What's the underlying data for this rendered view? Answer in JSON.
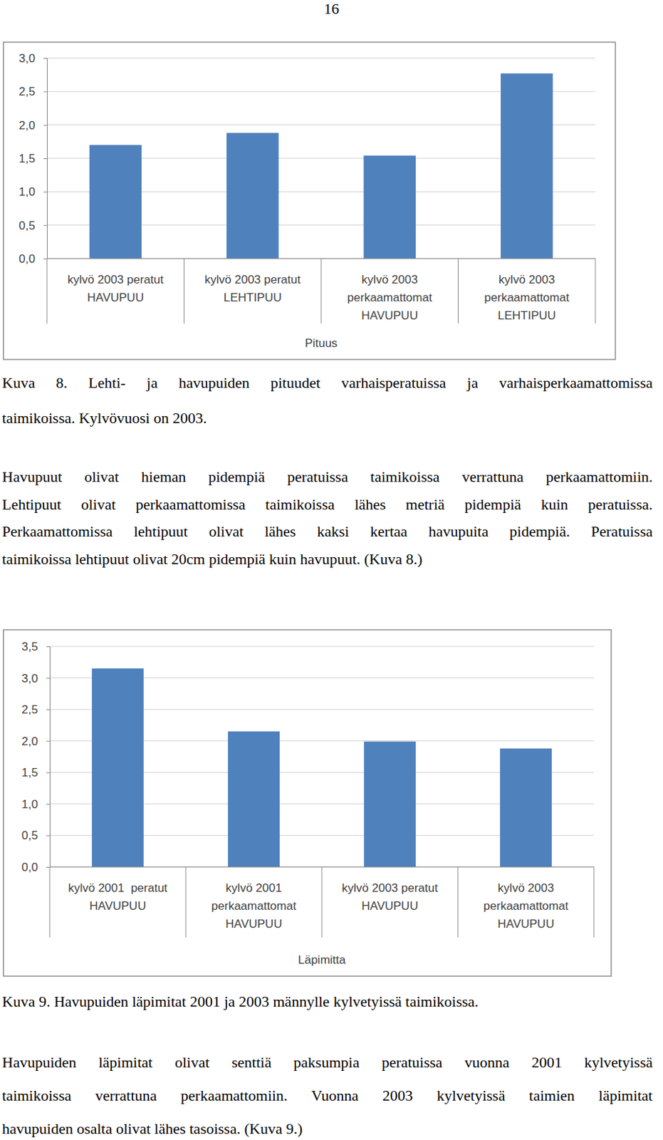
{
  "page_number": "16",
  "chart_data": [
    {
      "type": "bar",
      "x_label": "Pituus",
      "categories": [
        "kylvö 2003 peratut\nHAVUPUU",
        "kylvö 2003 peratut\nLEHTIPUU",
        "kylvö 2003\nperkaamattomat\nHAVUPUU",
        "kylvö 2003\nperkaamattomat\nLEHTIPUU"
      ],
      "values": [
        1.7,
        1.88,
        1.54,
        2.77
      ],
      "color": "#4f81bd",
      "ylim": [
        0,
        3
      ],
      "yticks": [
        {
          "value": 0,
          "label": "0,0"
        },
        {
          "value": 0.5,
          "label": "0,5"
        },
        {
          "value": 1,
          "label": "1,0"
        },
        {
          "value": 1.5,
          "label": "1,5"
        },
        {
          "value": 2,
          "label": "2,0"
        },
        {
          "value": 2.5,
          "label": "2,5"
        },
        {
          "value": 3,
          "label": "3,0"
        }
      ],
      "grid": true
    },
    {
      "type": "bar",
      "x_label": "Läpimitta",
      "categories": [
        "kylvö 2001  peratut\nHAVUPUU",
        "kylvö 2001\nperkaamattomat\nHAVUPUU",
        "kylvö 2003 peratut\nHAVUPUU",
        "kylvö 2003\nperkaamattomat\nHAVUPUU"
      ],
      "values": [
        3.15,
        2.15,
        1.99,
        1.88
      ],
      "color": "#4f81bd",
      "ylim": [
        0,
        3.5
      ],
      "yticks": [
        {
          "value": 0,
          "label": "0,0"
        },
        {
          "value": 0.5,
          "label": "0,5"
        },
        {
          "value": 1,
          "label": "1,0"
        },
        {
          "value": 1.5,
          "label": "1,5"
        },
        {
          "value": 2,
          "label": "2,0"
        },
        {
          "value": 2.5,
          "label": "2,5"
        },
        {
          "value": 3,
          "label": "3,0"
        },
        {
          "value": 3.5,
          "label": "3,5"
        }
      ],
      "grid": true
    }
  ],
  "captions": [
    [
      "Kuva 8. Lehti- ja havupuiden pituudet varhaisperatuissa ja varhaisperkaamattomissa",
      "taimikoissa. Kylvövuosi on 2003."
    ],
    [
      "Kuva 9. Havupuiden läpimitat 2001 ja 2003 männylle kylvetyissä taimikoissa."
    ]
  ],
  "paragraphs": [
    [
      "Havupuut olivat hieman pidempiä peratuissa taimikoissa verrattuna perkaamattomiin.",
      "Lehtipuut olivat perkaamattomissa taimikoissa lähes metriä pidempiä kuin peratuissa.",
      "Perkaamattomissa lehtipuut olivat lähes kaksi kertaa havupuita pidempiä. Peratuissa",
      "taimikoissa lehtipuut olivat 20cm pidempiä kuin havupuut. (Kuva 8.)"
    ],
    [
      "Havupuiden läpimitat olivat senttiä paksumpia peratuissa vuonna 2001 kylvetyissä",
      "taimikoissa verrattuna perkaamattomiin. Vuonna 2003 kylvetyissä taimien läpimitat",
      "havupuiden osalta olivat lähes tasoissa. (Kuva 9.)"
    ]
  ]
}
